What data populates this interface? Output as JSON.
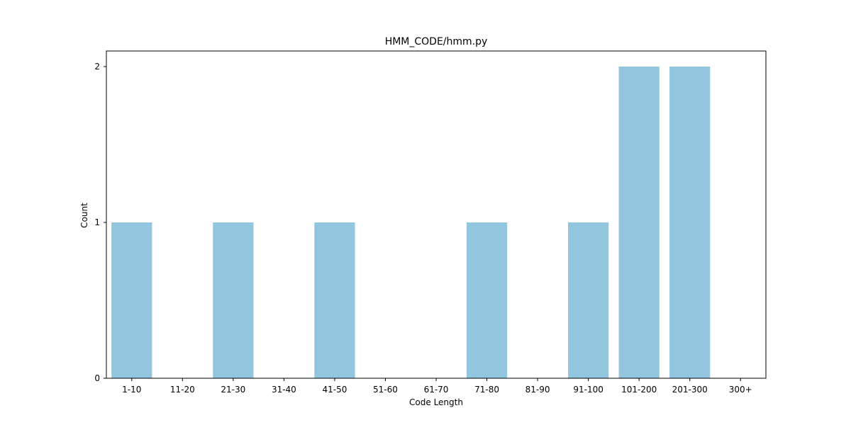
{
  "chart_data": {
    "type": "bar",
    "title": "HMM_CODE/hmm.py",
    "xlabel": "Code Length",
    "ylabel": "Count",
    "categories": [
      "1-10",
      "11-20",
      "21-30",
      "31-40",
      "41-50",
      "51-60",
      "61-70",
      "71-80",
      "81-90",
      "91-100",
      "101-200",
      "201-300",
      "300+"
    ],
    "values": [
      1,
      0,
      1,
      0,
      1,
      0,
      0,
      1,
      0,
      1,
      2,
      2,
      0
    ],
    "yticks": [
      0,
      1,
      2
    ],
    "ylim": [
      0,
      2.1
    ],
    "grid": false,
    "bar_color": "#92c5de"
  }
}
